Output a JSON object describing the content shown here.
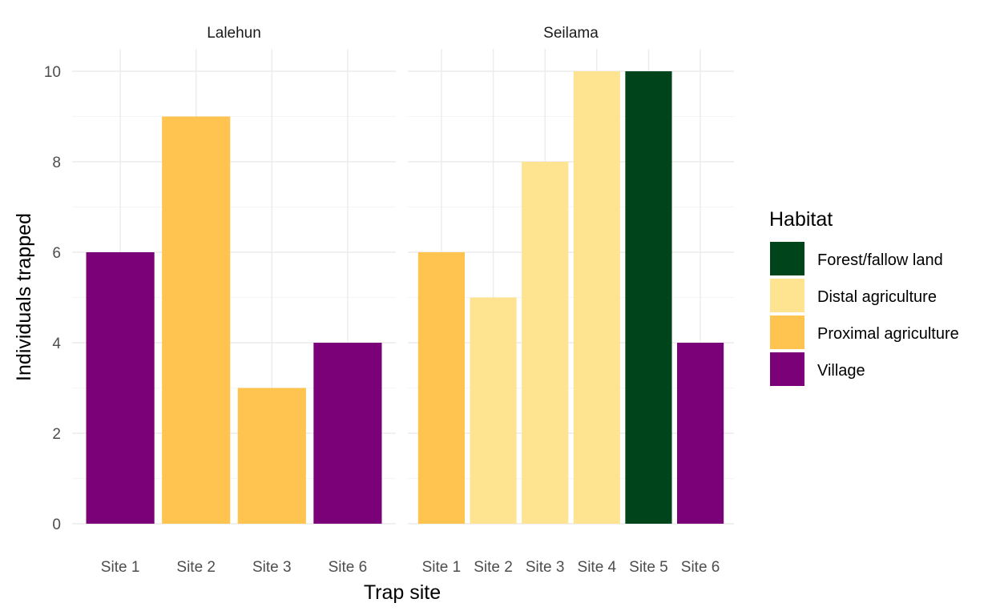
{
  "chart_data": {
    "type": "bar",
    "xlabel": "Trap site",
    "ylabel": "Individuals trapped",
    "ylim": [
      0,
      10.5
    ],
    "yticks": [
      0,
      2,
      4,
      6,
      8,
      10
    ],
    "grid": true,
    "legend": {
      "title": "Habitat",
      "placement": "right",
      "entries": [
        {
          "name": "Forest/fallow land",
          "color": "#00441b"
        },
        {
          "name": "Distal agriculture",
          "color": "#fee391"
        },
        {
          "name": "Proximal agriculture",
          "color": "#fec44f"
        },
        {
          "name": "Village",
          "color": "#7a0177"
        }
      ]
    },
    "facets": [
      {
        "title": "Lalehun",
        "categories": [
          "Site 1",
          "Site 2",
          "Site 3",
          "Site 6"
        ],
        "values": [
          6,
          9,
          3,
          4
        ],
        "habitats": [
          "Village",
          "Proximal agriculture",
          "Proximal agriculture",
          "Village"
        ]
      },
      {
        "title": "Seilama",
        "categories": [
          "Site 1",
          "Site 2",
          "Site 3",
          "Site 4",
          "Site 5",
          "Site 6"
        ],
        "values": [
          6,
          5,
          8,
          10,
          10,
          4
        ],
        "habitats": [
          "Proximal agriculture",
          "Distal agriculture",
          "Distal agriculture",
          "Distal agriculture",
          "Forest/fallow land",
          "Village"
        ]
      }
    ]
  }
}
